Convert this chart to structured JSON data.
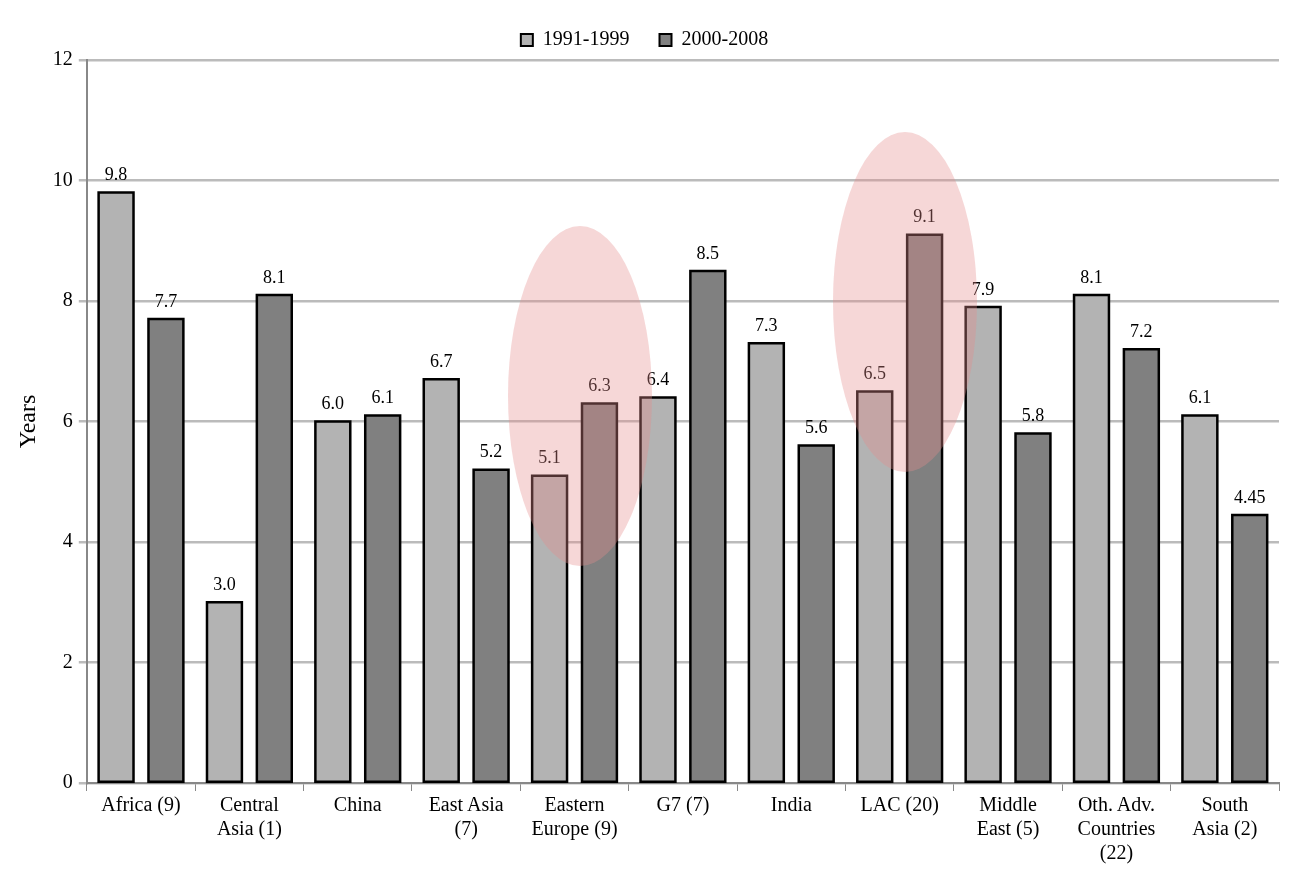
{
  "chart_data": {
    "type": "bar",
    "ylabel": "Years",
    "categories": [
      "Africa (9)",
      "Central Asia (1)",
      "China",
      "East Asia (7)",
      "Eastern Europe (9)",
      "G7 (7)",
      "India",
      "LAC (20)",
      "Middle East (5)",
      "Oth. Adv. Countries (22)",
      "South Asia (2)"
    ],
    "series": [
      {
        "name": "1991-1999",
        "color": "#b3b3b3",
        "values": [
          9.8,
          3.0,
          6.0,
          6.7,
          5.1,
          6.4,
          7.3,
          6.5,
          7.9,
          8.1,
          6.1
        ],
        "value_labels": [
          "9.8",
          "3.0",
          "6.0",
          "6.7",
          "5.1",
          "6.4",
          "7.3",
          "6.5",
          "7.9",
          "8.1",
          "6.1"
        ]
      },
      {
        "name": "2000-2008",
        "color": "#808080",
        "values": [
          7.7,
          8.1,
          6.1,
          5.2,
          6.3,
          8.5,
          5.6,
          9.1,
          5.8,
          7.2,
          4.45
        ],
        "value_labels": [
          "7.7",
          "8.1",
          "6.1",
          "5.2",
          "6.3",
          "8.5",
          "5.6",
          "9.1",
          "5.8",
          "7.2",
          "4.45"
        ]
      }
    ],
    "ylim": [
      0,
      12
    ],
    "yticks": [
      0,
      2,
      4,
      6,
      8,
      10,
      12
    ],
    "grid": "y",
    "legend": "top"
  }
}
